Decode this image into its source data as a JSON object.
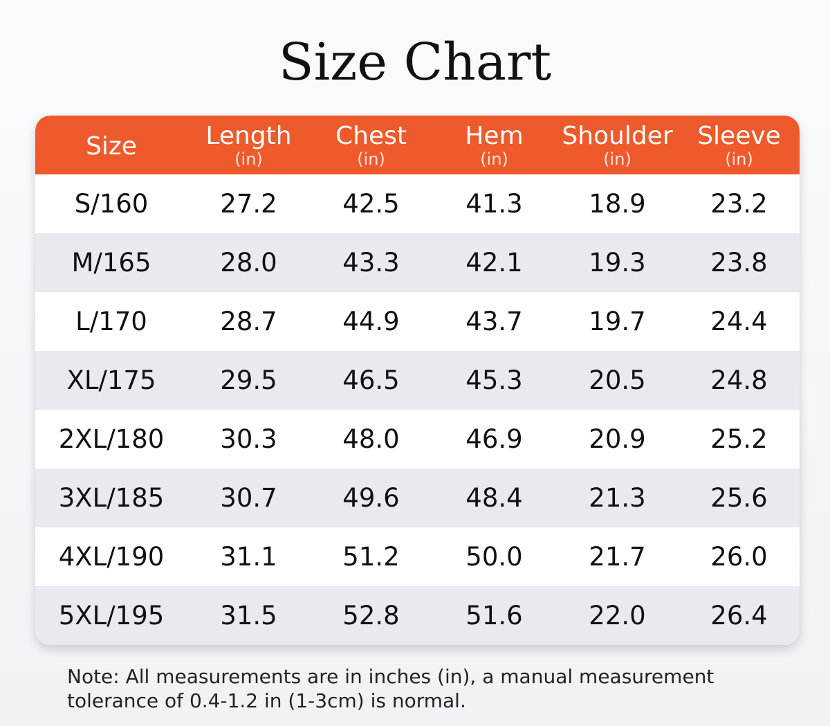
{
  "title": "Size Chart",
  "table": {
    "headers": [
      {
        "label": "Size",
        "unit": ""
      },
      {
        "label": "Length",
        "unit": "(in)"
      },
      {
        "label": "Chest",
        "unit": "(in)"
      },
      {
        "label": "Hem",
        "unit": "(in)"
      },
      {
        "label": "Shoulder",
        "unit": "(in)"
      },
      {
        "label": "Sleeve",
        "unit": "(in)"
      }
    ],
    "rows": [
      [
        "S/160",
        "27.2",
        "42.5",
        "41.3",
        "18.9",
        "23.2"
      ],
      [
        "M/165",
        "28.0",
        "43.3",
        "42.1",
        "19.3",
        "23.8"
      ],
      [
        "L/170",
        "28.7",
        "44.9",
        "43.7",
        "19.7",
        "24.4"
      ],
      [
        "XL/175",
        "29.5",
        "46.5",
        "45.3",
        "20.5",
        "24.8"
      ],
      [
        "2XL/180",
        "30.3",
        "48.0",
        "46.9",
        "20.9",
        "25.2"
      ],
      [
        "3XL/185",
        "30.7",
        "49.6",
        "48.4",
        "21.3",
        "25.6"
      ],
      [
        "4XL/190",
        "31.1",
        "51.2",
        "50.0",
        "21.7",
        "26.0"
      ],
      [
        "5XL/195",
        "31.5",
        "52.8",
        "51.6",
        "22.0",
        "26.4"
      ]
    ]
  },
  "note": "Note: All measurements are in inches (in), a manual measurement tolerance of 0.4-1.2 in (1-3cm) is normal.",
  "colors": {
    "header_background": "#ee5a2c",
    "alternate_row": "#e9eaf0"
  }
}
